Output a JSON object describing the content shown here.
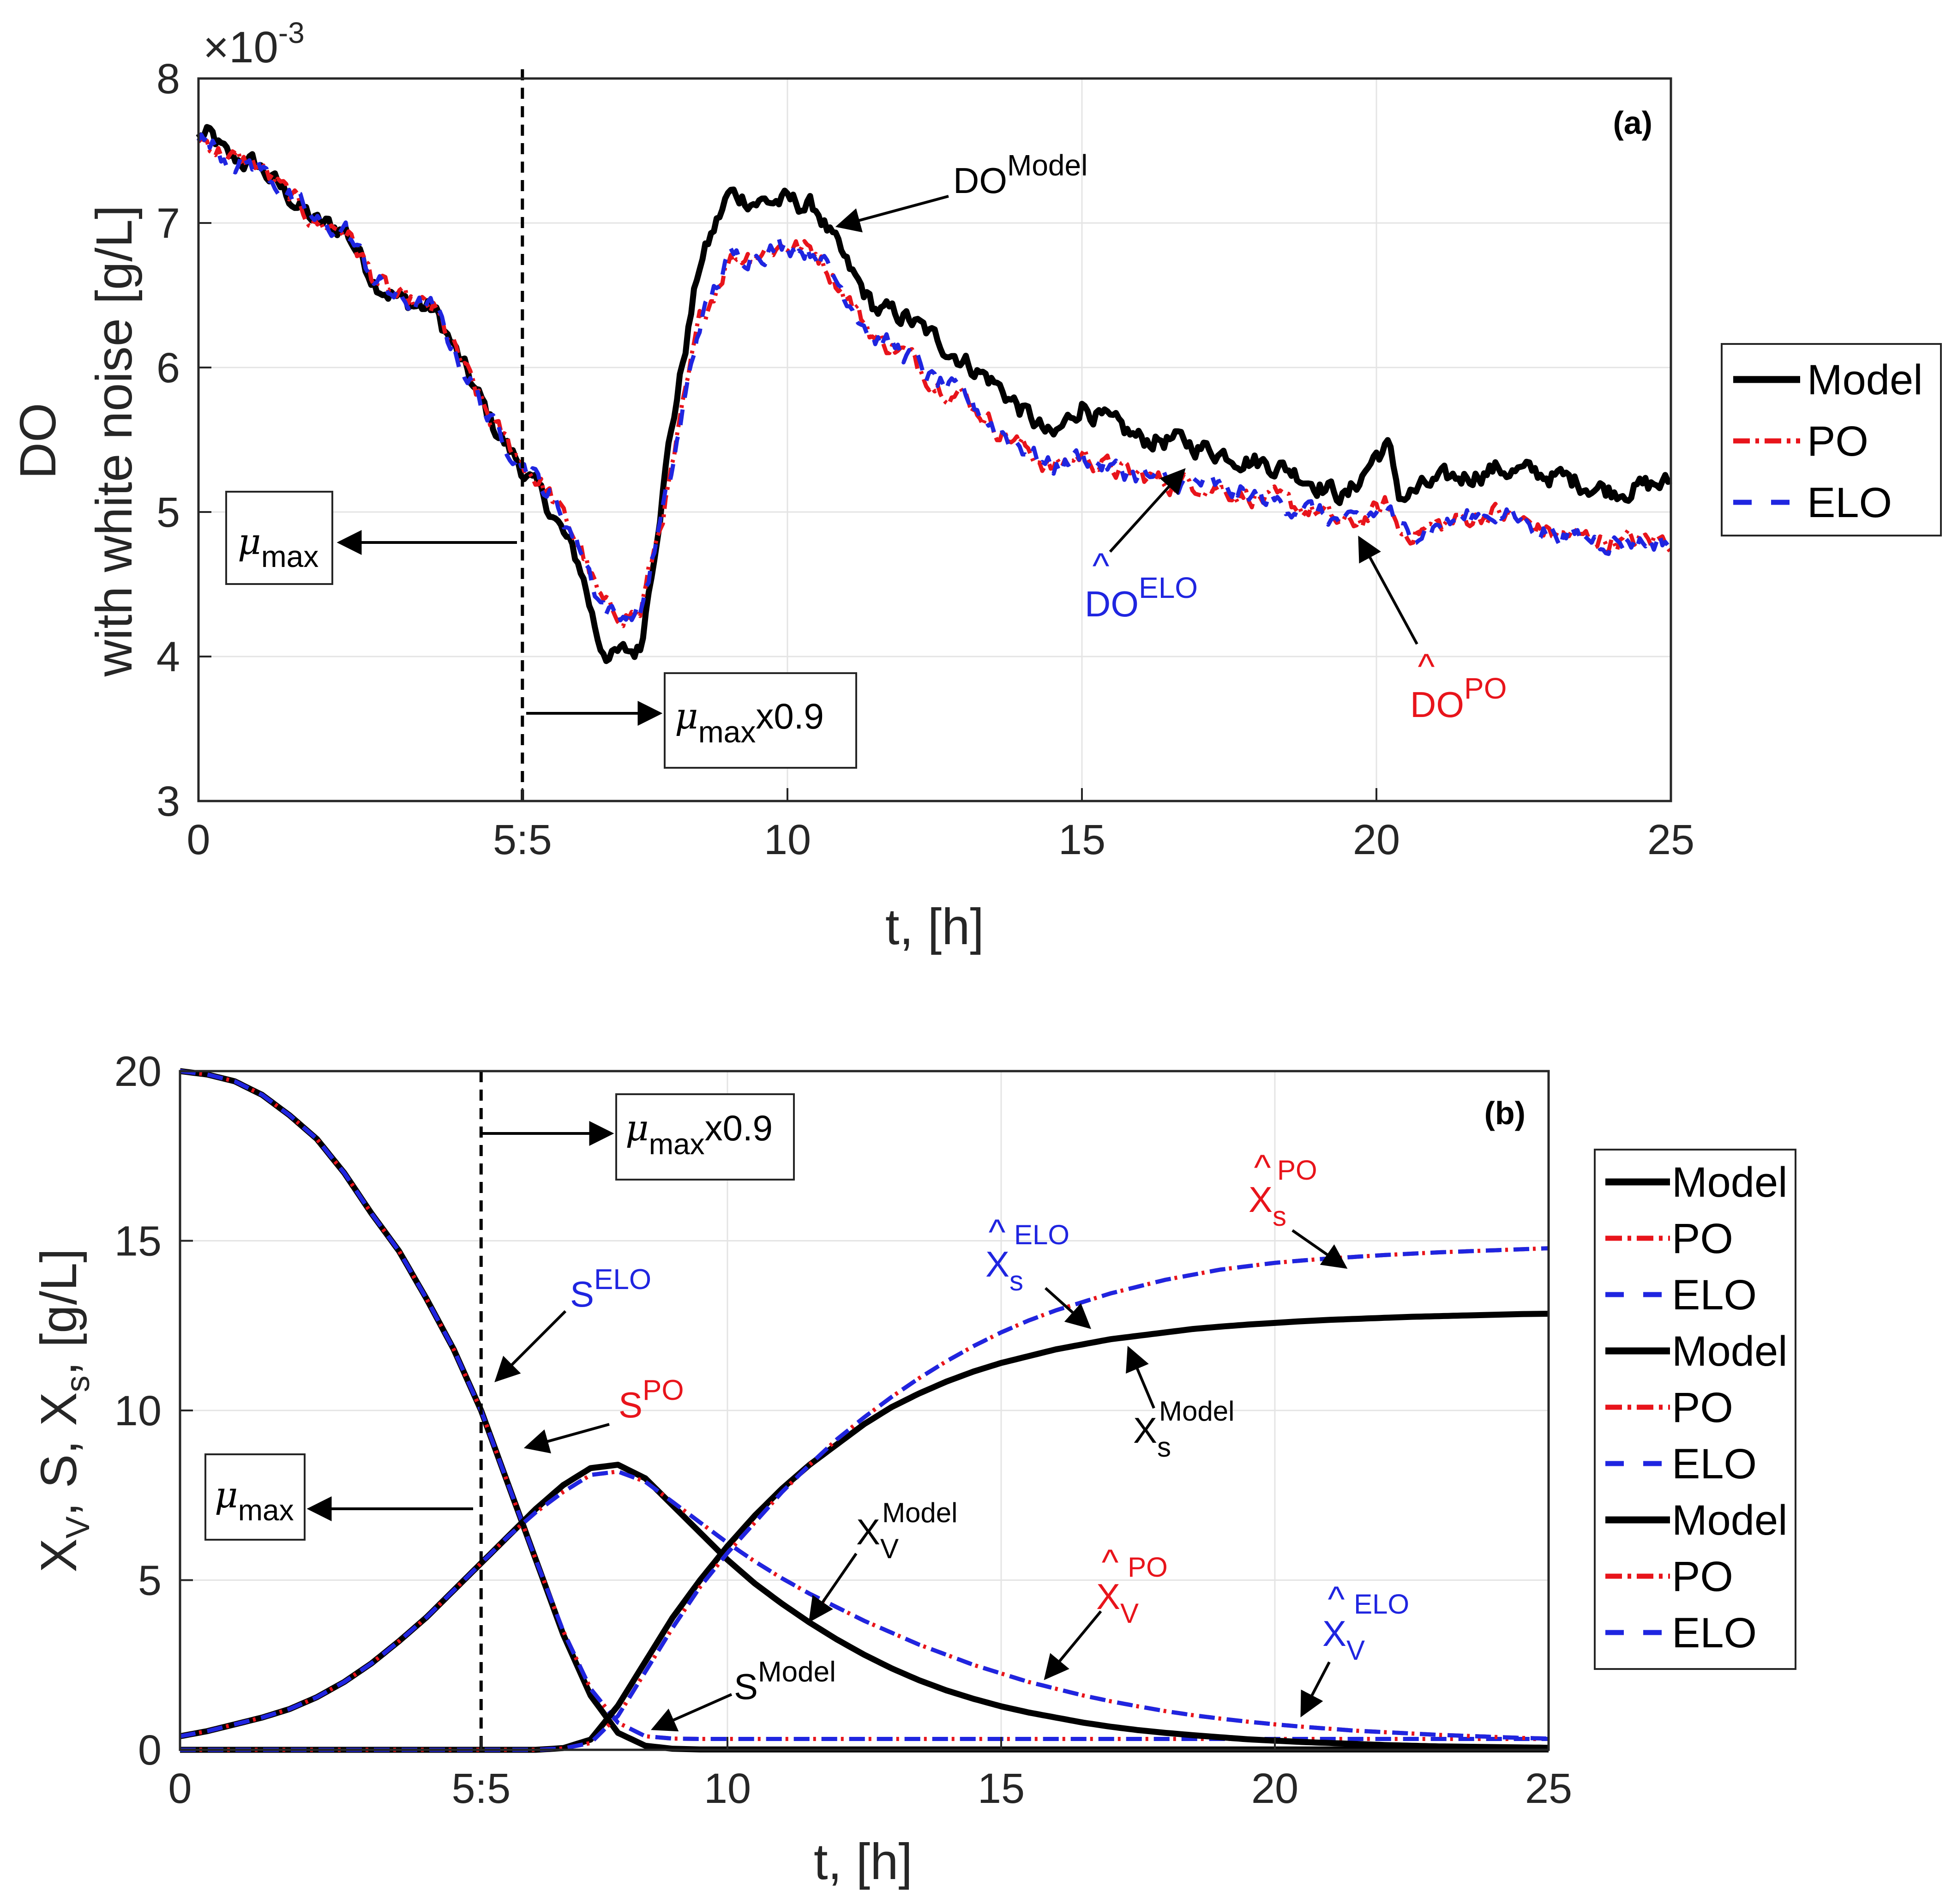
{
  "colors": {
    "model": "#000000",
    "po": "#e8141b",
    "elo": "#1f25e0",
    "grid": "#e4e4e4",
    "axis": "#262626"
  },
  "chart_data": [
    {
      "id": "a",
      "type": "line",
      "panel_label": "(a)",
      "xlabel": "t, [h]",
      "ylabel_line1": "DO",
      "ylabel_line2": "with white noise [g/L]",
      "y_exponent_label": "×10",
      "y_exponent_power": "-3",
      "xlim": [
        0,
        25
      ],
      "ylim": [
        3,
        8
      ],
      "xticks": [
        0,
        5.5,
        10,
        15,
        20,
        25
      ],
      "xtick_labels": [
        "0",
        "5:5",
        "10",
        "15",
        "20",
        "25"
      ],
      "yticks": [
        3,
        4,
        5,
        6,
        7,
        8
      ],
      "ytick_labels": [
        "3",
        "4",
        "5",
        "6",
        "7",
        "8"
      ],
      "vline_x": 5.5,
      "noise": 0.06,
      "series": [
        {
          "name": "Model",
          "style": "model",
          "x": [
            0,
            0.2,
            0.5,
            1,
            1.5,
            2,
            2.5,
            3,
            3.5,
            4,
            4.5,
            5,
            5.5,
            6,
            6.5,
            6.8,
            7,
            7.5,
            8,
            8.5,
            9,
            9.5,
            10,
            10.5,
            11,
            11.5,
            12,
            12.5,
            13,
            13.5,
            14,
            14.5,
            15,
            15.5,
            16,
            16.5,
            17,
            17.5,
            18,
            18.5,
            19,
            19.5,
            20,
            20.2,
            20.4,
            21,
            22,
            23,
            24,
            25
          ],
          "y": [
            7.6,
            7.6,
            7.45,
            7.4,
            7.2,
            7.0,
            6.95,
            6.6,
            6.45,
            6.4,
            6.0,
            5.6,
            5.3,
            5.0,
            4.6,
            4.1,
            4.0,
            4.05,
            5.5,
            6.7,
            7.2,
            7.15,
            7.15,
            7.1,
            6.7,
            6.4,
            6.35,
            6.2,
            6.05,
            5.9,
            5.7,
            5.5,
            5.75,
            5.6,
            5.5,
            5.5,
            5.45,
            5.4,
            5.35,
            5.3,
            5.2,
            5.1,
            5.4,
            5.45,
            5.1,
            5.2,
            5.3,
            5.25,
            5.15,
            5.2
          ]
        },
        {
          "name": "PO",
          "style": "po",
          "x": [
            0,
            0.2,
            0.5,
            1,
            1.5,
            2,
            2.5,
            3,
            3.5,
            4,
            4.5,
            5,
            5.5,
            6,
            6.5,
            6.8,
            7,
            7.5,
            8,
            8.5,
            9,
            9.5,
            10,
            10.5,
            11,
            11.5,
            12,
            12.5,
            13,
            13.5,
            14,
            14.5,
            15,
            15.5,
            16,
            16.5,
            17,
            17.5,
            18,
            18.5,
            19,
            19.5,
            20,
            20.2,
            20.4,
            21,
            22,
            23,
            24,
            25
          ],
          "y": [
            7.6,
            7.55,
            7.45,
            7.4,
            7.2,
            7.0,
            6.95,
            6.6,
            6.45,
            6.4,
            6.0,
            5.6,
            5.35,
            5.1,
            4.75,
            4.4,
            4.3,
            4.3,
            5.2,
            6.3,
            6.75,
            6.8,
            6.85,
            6.8,
            6.5,
            6.2,
            6.1,
            5.9,
            5.8,
            5.6,
            5.45,
            5.3,
            5.4,
            5.3,
            5.25,
            5.2,
            5.2,
            5.15,
            5.1,
            5.05,
            5.0,
            4.9,
            5.0,
            5.05,
            4.85,
            4.9,
            5.0,
            4.85,
            4.8,
            4.8
          ]
        },
        {
          "name": "ELO",
          "style": "elo",
          "x": [
            0,
            0.2,
            0.5,
            1,
            1.5,
            2,
            2.5,
            3,
            3.5,
            4,
            4.5,
            5,
            5.5,
            6,
            6.5,
            6.8,
            7,
            7.5,
            8,
            8.5,
            9,
            9.5,
            10,
            10.5,
            11,
            11.5,
            12,
            12.5,
            13,
            13.5,
            14,
            14.5,
            15,
            15.5,
            16,
            16.5,
            17,
            17.5,
            18,
            18.5,
            19,
            19.5,
            20,
            20.2,
            20.4,
            21,
            22,
            23,
            24,
            25
          ],
          "y": [
            7.6,
            7.55,
            7.45,
            7.4,
            7.2,
            7.0,
            6.95,
            6.6,
            6.45,
            6.4,
            6.0,
            5.6,
            5.35,
            5.1,
            4.75,
            4.4,
            4.3,
            4.3,
            5.2,
            6.3,
            6.75,
            6.8,
            6.85,
            6.8,
            6.5,
            6.2,
            6.1,
            5.9,
            5.8,
            5.6,
            5.45,
            5.3,
            5.4,
            5.3,
            5.25,
            5.2,
            5.2,
            5.15,
            5.1,
            5.05,
            5.0,
            4.9,
            5.0,
            5.05,
            4.85,
            4.9,
            5.0,
            4.85,
            4.8,
            4.8
          ]
        }
      ],
      "legend": [
        {
          "label": "Model",
          "style": "model"
        },
        {
          "label": "PO",
          "style": "po"
        },
        {
          "label": "ELO",
          "style": "elo"
        }
      ],
      "annotations": {
        "mu_max": {
          "symbol": "μ",
          "sub": "max"
        },
        "mu_max_09": {
          "symbol": "μ",
          "sub": "max",
          "suffix": "x0.9"
        },
        "do_model": {
          "base": "DO",
          "sup": "Model"
        },
        "do_elo": {
          "hat": "^",
          "base": "DO",
          "sup": "ELO"
        },
        "do_po": {
          "hat": "^",
          "base": "DO",
          "sup": "PO"
        }
      }
    },
    {
      "id": "b",
      "type": "line",
      "panel_label": "(b)",
      "xlabel": "t, [h]",
      "ylabel_parts": {
        "xv": "X",
        "xv_sub": "V",
        "sep1": ", S, ",
        "xs": "X",
        "xs_sub": "s",
        "unit": ", [g/L]"
      },
      "xlim": [
        0,
        25
      ],
      "ylim": [
        0,
        20
      ],
      "xticks": [
        0,
        5.5,
        10,
        15,
        20,
        25
      ],
      "xtick_labels": [
        "0",
        "5:5",
        "10",
        "15",
        "20",
        "25"
      ],
      "yticks": [
        0,
        5,
        10,
        15,
        20
      ],
      "ytick_labels": [
        "0",
        "5",
        "10",
        "15",
        "20"
      ],
      "vline_x": 5.5,
      "x": [
        0,
        0.5,
        1,
        1.5,
        2,
        2.5,
        3,
        3.5,
        4,
        4.5,
        5,
        5.5,
        6,
        6.5,
        7,
        7.5,
        8,
        8.5,
        9,
        9.5,
        10,
        10.5,
        11,
        11.5,
        12,
        12.5,
        13,
        13.5,
        14,
        14.5,
        15,
        15.5,
        16,
        16.5,
        17,
        17.5,
        18,
        18.5,
        19,
        19.5,
        20,
        20.5,
        21,
        21.5,
        22,
        22.5,
        23,
        23.5,
        24,
        24.5,
        25
      ],
      "series": [
        {
          "name": "S Model",
          "style": "model",
          "y": [
            20,
            19.9,
            19.7,
            19.3,
            18.7,
            18.0,
            17.0,
            15.8,
            14.7,
            13.3,
            11.8,
            10.0,
            7.8,
            5.6,
            3.4,
            1.6,
            0.5,
            0.12,
            0.03,
            0.01,
            0.01,
            0.01,
            0.01,
            0.01,
            0.01,
            0.01,
            0.01,
            0.01,
            0.01,
            0.01,
            0.01,
            0.01,
            0.01,
            0.01,
            0.01,
            0.01,
            0.01,
            0.01,
            0.01,
            0.01,
            0.01,
            0.01,
            0.01,
            0.01,
            0.01,
            0.01,
            0.01,
            0.01,
            0.01,
            0.01,
            0.01
          ]
        },
        {
          "name": "S PO",
          "style": "po",
          "y": [
            20,
            19.9,
            19.7,
            19.3,
            18.7,
            18.0,
            17.0,
            15.8,
            14.7,
            13.3,
            11.8,
            10.0,
            7.8,
            5.6,
            3.5,
            1.8,
            0.8,
            0.4,
            0.33,
            0.32,
            0.32,
            0.32,
            0.32,
            0.32,
            0.32,
            0.32,
            0.32,
            0.32,
            0.32,
            0.32,
            0.32,
            0.32,
            0.32,
            0.32,
            0.32,
            0.32,
            0.32,
            0.32,
            0.32,
            0.32,
            0.32,
            0.32,
            0.32,
            0.32,
            0.32,
            0.32,
            0.32,
            0.32,
            0.32,
            0.32,
            0.32
          ]
        },
        {
          "name": "S ELO",
          "style": "elo",
          "y": [
            20,
            19.9,
            19.7,
            19.3,
            18.7,
            18.0,
            17.0,
            15.8,
            14.7,
            13.3,
            11.8,
            10.0,
            7.8,
            5.6,
            3.5,
            1.8,
            0.8,
            0.4,
            0.33,
            0.32,
            0.32,
            0.32,
            0.32,
            0.32,
            0.32,
            0.32,
            0.32,
            0.32,
            0.32,
            0.32,
            0.32,
            0.32,
            0.32,
            0.32,
            0.32,
            0.32,
            0.32,
            0.32,
            0.32,
            0.32,
            0.32,
            0.32,
            0.32,
            0.32,
            0.32,
            0.32,
            0.32,
            0.32,
            0.32,
            0.32,
            0.32
          ]
        },
        {
          "name": "Xv Model",
          "style": "model",
          "y": [
            0.4,
            0.55,
            0.75,
            0.95,
            1.2,
            1.55,
            2.0,
            2.55,
            3.2,
            3.9,
            4.7,
            5.5,
            6.3,
            7.1,
            7.8,
            8.3,
            8.4,
            8.0,
            7.2,
            6.4,
            5.6,
            4.9,
            4.3,
            3.75,
            3.25,
            2.8,
            2.4,
            2.05,
            1.75,
            1.5,
            1.28,
            1.1,
            0.95,
            0.8,
            0.68,
            0.58,
            0.5,
            0.43,
            0.37,
            0.31,
            0.27,
            0.23,
            0.2,
            0.17,
            0.14,
            0.12,
            0.1,
            0.09,
            0.08,
            0.07,
            0.06
          ]
        },
        {
          "name": "Xv PO",
          "style": "po",
          "y": [
            0.4,
            0.55,
            0.75,
            0.95,
            1.2,
            1.55,
            2.0,
            2.55,
            3.2,
            3.9,
            4.7,
            5.5,
            6.3,
            7.0,
            7.6,
            8.1,
            8.2,
            7.9,
            7.3,
            6.7,
            6.1,
            5.55,
            5.05,
            4.6,
            4.2,
            3.8,
            3.45,
            3.1,
            2.8,
            2.5,
            2.25,
            2.0,
            1.8,
            1.6,
            1.43,
            1.28,
            1.14,
            1.02,
            0.92,
            0.83,
            0.75,
            0.68,
            0.62,
            0.56,
            0.52,
            0.48,
            0.44,
            0.41,
            0.38,
            0.35,
            0.33
          ]
        },
        {
          "name": "Xv ELO",
          "style": "elo",
          "y": [
            0.4,
            0.55,
            0.75,
            0.95,
            1.2,
            1.55,
            2.0,
            2.55,
            3.2,
            3.9,
            4.7,
            5.5,
            6.3,
            7.0,
            7.6,
            8.1,
            8.2,
            7.9,
            7.3,
            6.7,
            6.1,
            5.55,
            5.05,
            4.6,
            4.2,
            3.8,
            3.45,
            3.1,
            2.8,
            2.5,
            2.25,
            2.0,
            1.8,
            1.6,
            1.43,
            1.28,
            1.14,
            1.02,
            0.92,
            0.83,
            0.75,
            0.68,
            0.62,
            0.56,
            0.52,
            0.48,
            0.44,
            0.41,
            0.38,
            0.35,
            0.33
          ]
        },
        {
          "name": "Xs Model",
          "style": "model",
          "y": [
            0,
            0,
            0,
            0,
            0,
            0,
            0,
            0,
            0,
            0,
            0,
            0,
            0,
            0,
            0.05,
            0.3,
            1.3,
            2.6,
            3.9,
            5.0,
            6.0,
            6.9,
            7.7,
            8.4,
            9.0,
            9.6,
            10.1,
            10.5,
            10.85,
            11.15,
            11.4,
            11.6,
            11.8,
            11.95,
            12.1,
            12.2,
            12.3,
            12.4,
            12.47,
            12.53,
            12.58,
            12.63,
            12.67,
            12.7,
            12.73,
            12.76,
            12.78,
            12.8,
            12.82,
            12.84,
            12.85
          ]
        },
        {
          "name": "Xs PO",
          "style": "po",
          "y": [
            0,
            0,
            0,
            0,
            0,
            0,
            0,
            0,
            0,
            0,
            0,
            0,
            0,
            0,
            0.04,
            0.2,
            1.0,
            2.3,
            3.6,
            4.8,
            5.8,
            6.7,
            7.6,
            8.4,
            9.15,
            9.8,
            10.4,
            10.95,
            11.45,
            11.9,
            12.3,
            12.65,
            12.95,
            13.2,
            13.45,
            13.65,
            13.85,
            14.0,
            14.15,
            14.25,
            14.35,
            14.42,
            14.48,
            14.53,
            14.58,
            14.62,
            14.66,
            14.69,
            14.72,
            14.75,
            14.78
          ]
        },
        {
          "name": "Xs ELO",
          "style": "elo",
          "y": [
            0,
            0,
            0,
            0,
            0,
            0,
            0,
            0,
            0,
            0,
            0,
            0,
            0,
            0,
            0.04,
            0.2,
            1.0,
            2.3,
            3.6,
            4.8,
            5.8,
            6.7,
            7.6,
            8.4,
            9.15,
            9.8,
            10.4,
            10.95,
            11.45,
            11.9,
            12.3,
            12.65,
            12.95,
            13.2,
            13.45,
            13.65,
            13.85,
            14.0,
            14.15,
            14.25,
            14.35,
            14.42,
            14.48,
            14.53,
            14.58,
            14.62,
            14.66,
            14.69,
            14.72,
            14.75,
            14.78
          ]
        }
      ],
      "legend": [
        {
          "label": "Model",
          "style": "model"
        },
        {
          "label": "PO",
          "style": "po"
        },
        {
          "label": "ELO",
          "style": "elo"
        },
        {
          "label": "Model",
          "style": "model"
        },
        {
          "label": "PO",
          "style": "po"
        },
        {
          "label": "ELO",
          "style": "elo"
        },
        {
          "label": "Model",
          "style": "model"
        },
        {
          "label": "PO",
          "style": "po"
        },
        {
          "label": "ELO",
          "style": "elo"
        }
      ],
      "annotations": {
        "mu_max": {
          "symbol": "μ",
          "sub": "max"
        },
        "mu_max_09": {
          "symbol": "μ",
          "sub": "max",
          "suffix": "x0.9"
        },
        "s_elo": {
          "base": "S",
          "sup": "ELO"
        },
        "s_po": {
          "base": "S",
          "sup": "PO"
        },
        "s_model": {
          "base": "S",
          "sup": "Model"
        },
        "xs_elo": {
          "hat": "^",
          "base": "X",
          "sub": "s",
          "sup": "ELO"
        },
        "xs_po": {
          "hat": "^",
          "base": "X",
          "sub": "s",
          "sup": "PO"
        },
        "xs_model": {
          "base": "X",
          "sub": "s",
          "sup": "Model"
        },
        "xv_model": {
          "base": "X",
          "sub": "V",
          "sup": "Model"
        },
        "xv_po": {
          "hat": "^",
          "base": "X",
          "sub": "V",
          "sup": "PO"
        },
        "xv_elo": {
          "hat": "^",
          "base": "X",
          "sub": "V",
          "sup": "ELO"
        }
      }
    }
  ]
}
